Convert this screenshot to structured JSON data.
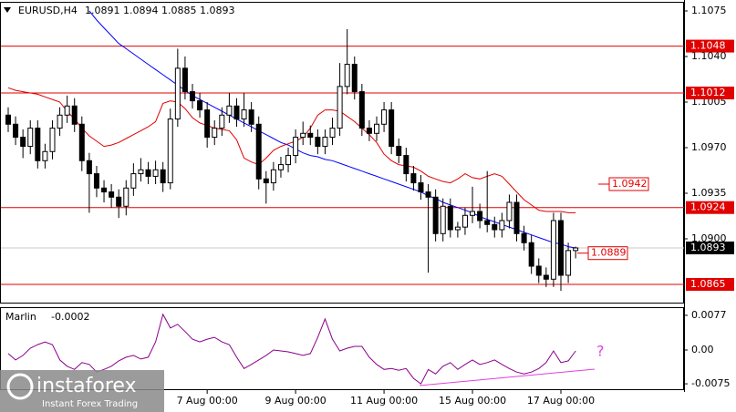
{
  "chart_data": [
    {
      "type": "candlestick",
      "title": "EURUSD,H4",
      "categories": [
        null,
        null,
        null,
        null,
        null,
        null,
        null,
        null,
        null,
        null,
        null,
        null,
        null,
        null,
        null,
        null,
        null,
        null,
        null,
        null,
        null,
        null,
        null,
        null,
        null,
        null,
        null,
        "7 Aug 00:00",
        null,
        null,
        null,
        null,
        null,
        null,
        null,
        null,
        null,
        null,
        null,
        "9 Aug 00:00",
        null,
        null,
        null,
        null,
        null,
        null,
        null,
        null,
        null,
        null,
        null,
        "11 Aug 00:00",
        null,
        null,
        null,
        null,
        null,
        null,
        null,
        null,
        null,
        null,
        null,
        "15 Aug 00:00",
        null,
        null,
        null,
        null,
        null,
        null,
        null,
        null,
        null,
        null,
        null,
        "17 Aug 00:00",
        null,
        null
      ],
      "open": [
        1.0995,
        1.0988,
        1.0978,
        1.0971,
        1.0985,
        1.096,
        1.0967,
        1.0985,
        1.0995,
        1.1002,
        1.0988,
        1.096,
        1.095,
        1.0939,
        1.0936,
        1.0932,
        1.0925,
        1.0939,
        1.095,
        1.0953,
        1.0948,
        1.0953,
        1.0943,
        1.0992,
        1.1031,
        1.1013,
        1.1006,
        1.0999,
        1.0978,
        1.0985,
        1.0995,
        1.1002,
        1.0992,
        1.0999,
        1.0988,
        1.0946,
        1.0943,
        1.0953,
        1.0957,
        1.0964,
        1.0978,
        1.0981,
        1.0978,
        1.0971,
        1.0978,
        1.0985,
        1.1017,
        1.1034,
        1.1013,
        1.0985,
        1.0981,
        1.0988,
        1.0999,
        1.0971,
        1.0964,
        1.095,
        1.0943,
        1.0936,
        1.0932,
        1.0904,
        1.0925,
        1.0907,
        1.0909,
        1.0918,
        1.0921,
        1.0914,
        1.0911,
        1.0907,
        1.0914,
        1.0928,
        1.0904,
        1.0897,
        1.0879,
        1.0872,
        1.0869,
        1.0914,
        1.0872,
        1.0891
      ],
      "high": [
        1.1001,
        1.0994,
        1.0984,
        1.0991,
        1.0991,
        1.0973,
        1.0991,
        1.1001,
        1.101,
        1.1008,
        1.0994,
        1.0966,
        1.0956,
        1.0945,
        1.0942,
        1.0938,
        1.0945,
        1.0958,
        1.0962,
        1.0959,
        1.096,
        1.0959,
        1.1,
        1.1046,
        1.104,
        1.1019,
        1.1012,
        1.1005,
        1.0991,
        1.1001,
        1.1012,
        1.1008,
        1.1012,
        1.1005,
        1.0994,
        1.0952,
        1.0959,
        1.0963,
        1.097,
        1.0984,
        1.099,
        1.0987,
        1.0984,
        1.0984,
        1.0993,
        1.1035,
        1.1061,
        1.104,
        1.1019,
        1.0991,
        1.0994,
        1.1005,
        1.1005,
        1.0977,
        1.097,
        1.0956,
        1.0949,
        1.0942,
        1.0938,
        1.0931,
        1.0931,
        1.0913,
        1.0924,
        1.094,
        1.0927,
        1.0952,
        1.0917,
        1.092,
        1.0934,
        1.0934,
        1.091,
        1.0903,
        1.0885,
        1.0878,
        1.092,
        1.092,
        1.0897,
        1.0894
      ],
      "low": [
        1.0982,
        1.0972,
        1.0962,
        1.0965,
        1.0954,
        1.0954,
        1.0961,
        1.0979,
        1.0989,
        1.0982,
        1.0952,
        1.092,
        1.0932,
        1.0928,
        1.0924,
        1.0916,
        1.0918,
        1.0933,
        1.0944,
        1.0942,
        1.0942,
        1.0936,
        1.0938,
        1.0986,
        1.1007,
        1.1,
        1.0993,
        1.097,
        1.0972,
        1.0979,
        1.0989,
        1.0986,
        1.0986,
        1.0982,
        1.0938,
        1.0927,
        1.0937,
        1.0947,
        1.0951,
        1.0958,
        1.0972,
        1.0972,
        1.0965,
        1.0965,
        1.0972,
        1.0979,
        1.1011,
        1.1007,
        1.0979,
        1.0975,
        1.0975,
        1.0982,
        1.0965,
        1.0958,
        1.0944,
        1.0937,
        1.093,
        1.0874,
        1.0898,
        1.0898,
        1.0901,
        1.0901,
        1.0903,
        1.0912,
        1.0908,
        1.0905,
        1.0901,
        1.0901,
        1.0908,
        1.0898,
        1.0891,
        1.0873,
        1.0866,
        1.0863,
        1.0863,
        1.086,
        1.0866,
        1.0885
      ],
      "close": [
        1.0988,
        1.0978,
        1.0971,
        1.0985,
        1.096,
        1.0967,
        1.0985,
        1.0995,
        1.1002,
        1.0988,
        1.096,
        1.095,
        1.0939,
        1.0936,
        1.0932,
        1.0925,
        1.0939,
        1.095,
        1.0953,
        1.0948,
        1.0953,
        1.0943,
        1.0992,
        1.1031,
        1.1013,
        1.1006,
        1.0999,
        1.0978,
        1.0985,
        1.0995,
        1.1002,
        1.0992,
        1.0999,
        1.0988,
        1.0946,
        1.0943,
        1.0953,
        1.0957,
        1.0964,
        1.0978,
        1.0981,
        1.0978,
        1.0971,
        1.0978,
        1.0985,
        1.1017,
        1.1034,
        1.1013,
        1.0985,
        1.0981,
        1.0988,
        1.0999,
        1.0971,
        1.0964,
        1.095,
        1.0943,
        1.0936,
        1.0932,
        1.0904,
        1.0925,
        1.0907,
        1.0909,
        1.0918,
        1.0921,
        1.0914,
        1.0911,
        1.0907,
        1.0914,
        1.0928,
        1.0904,
        1.0897,
        1.0879,
        1.0872,
        1.0869,
        1.0914,
        1.0872,
        1.0891,
        1.0893
      ],
      "series": [
        {
          "color": "#0000ff",
          "values": [
            null,
            null,
            null,
            null,
            null,
            null,
            null,
            null,
            null,
            null,
            null,
            1.1075,
            1.1068,
            1.1062,
            1.1056,
            1.105,
            1.1046,
            1.1042,
            1.1038,
            1.1034,
            1.103,
            1.1026,
            1.1022,
            1.1018,
            1.1014,
            1.101,
            1.1007,
            1.1004,
            1.1001,
            1.0998,
            1.0995,
            1.0992,
            1.0989,
            1.0986,
            1.0983,
            1.098,
            1.0977,
            1.0974,
            1.0972,
            1.0969,
            1.0966,
            1.0964,
            1.0963,
            1.0961,
            1.096,
            1.0958,
            1.0956,
            1.0954,
            1.0952,
            1.095,
            1.0948,
            1.0946,
            1.0944,
            1.0942,
            1.094,
            1.0938,
            1.0936,
            1.0933,
            1.0931,
            1.0928,
            1.0926,
            1.0924,
            1.0922,
            1.092,
            1.0917,
            1.0915,
            1.0913,
            1.0911,
            1.0909,
            1.0907,
            1.0905,
            1.0903,
            1.0901,
            1.0899,
            1.0897,
            1.0896,
            1.0894,
            1.0893
          ]
        },
        {
          "color": "#e00000",
          "values": [
            1.1016,
            1.1014,
            1.1013,
            1.1012,
            1.1011,
            1.1009,
            1.1007,
            1.1005,
            1.0998,
            1.0992,
            1.0985,
            1.0979,
            1.0975,
            1.0971,
            1.0972,
            1.0974,
            1.0977,
            1.098,
            1.0983,
            1.0986,
            1.099,
            1.1004,
            1.1006,
            1.1005,
            1.1,
            1.0993,
            1.0989,
            1.0987,
            1.0985,
            1.0984,
            1.0983,
            1.0976,
            1.0962,
            1.0959,
            1.0957,
            1.0962,
            1.0968,
            1.0971,
            1.0973,
            1.0975,
            1.0978,
            1.0985,
            1.0995,
            1.0999,
            1.0999,
            1.0998,
            1.0994,
            1.099,
            1.0985,
            1.098,
            1.0974,
            1.0965,
            1.096,
            1.0957,
            1.0956,
            1.0955,
            1.0952,
            1.0948,
            1.0946,
            1.0944,
            1.0943,
            1.0946,
            1.095,
            1.0947,
            1.0946,
            1.0948,
            1.095,
            1.0948,
            1.0942,
            1.0936,
            1.093,
            1.0926,
            1.0922,
            1.0921,
            1.0921,
            1.0921,
            1.092,
            1.092
          ]
        }
      ],
      "levels": [
        {
          "value": 1.1048,
          "color": "#e00000"
        },
        {
          "value": 1.1012,
          "color": "#e00000"
        },
        {
          "value": 1.0924,
          "color": "#e00000"
        },
        {
          "value": 1.0865,
          "color": "#e00000"
        }
      ],
      "price_marks": [
        {
          "value": 1.0942,
          "color": "#e00000"
        },
        {
          "value": 1.0889,
          "color": "#e00000"
        }
      ],
      "ylim": [
        1.0851,
        1.1082
      ],
      "yticks": [
        1.1075,
        {
          "value": 1.104,
          "label": "1.1040"
        },
        1.1005,
        {
          "value": 1.097,
          "label": "1.0970"
        },
        1.0935,
        {
          "value": 1.09,
          "label": "1.0900"
        }
      ]
    },
    {
      "type": "line",
      "title": "Marlin",
      "series": [
        {
          "color": "#8b008b",
          "values": [
            -0.0008,
            -0.0022,
            -0.0012,
            0.0004,
            0.0012,
            0.0018,
            0.0012,
            -0.0022,
            -0.0036,
            -0.0043,
            -0.0028,
            -0.0032,
            -0.0049,
            -0.0043,
            -0.0036,
            -0.0024,
            -0.0016,
            -0.0012,
            -0.002,
            -0.0016,
            0.0018,
            0.0079,
            0.0049,
            0.0057,
            0.0041,
            0.0024,
            0.0018,
            0.0024,
            0.0028,
            0.0018,
            0.0012,
            -0.0016,
            -0.0041,
            -0.0032,
            -0.0022,
            -0.0012,
            0.0,
            -0.0002,
            -0.0004,
            -0.0008,
            -0.0012,
            -0.0008,
            0.0028,
            0.0069,
            0.0024,
            -0.0002,
            0.0004,
            0.0008,
            0.0008,
            -0.0016,
            -0.0032,
            -0.0043,
            -0.0041,
            -0.0045,
            -0.0041,
            -0.0063,
            -0.0075,
            -0.0043,
            -0.0053,
            -0.0036,
            -0.0028,
            -0.0043,
            -0.0032,
            -0.0022,
            -0.0032,
            -0.0028,
            -0.0022,
            -0.0032,
            -0.0041,
            -0.0049,
            -0.0053,
            -0.0049,
            -0.0041,
            -0.0028,
            -0.0002,
            -0.0028,
            -0.0024,
            -0.0002
          ]
        }
      ],
      "annotation": "?",
      "ylim": [
        -0.0089,
        0.0093
      ],
      "yticks": [
        0.0077,
        {
          "value": 0,
          "label": "0.00"
        },
        -0.0075
      ]
    }
  ],
  "watermark": {
    "brand": "instaforex",
    "slogan": "Instant Forex Trading"
  }
}
